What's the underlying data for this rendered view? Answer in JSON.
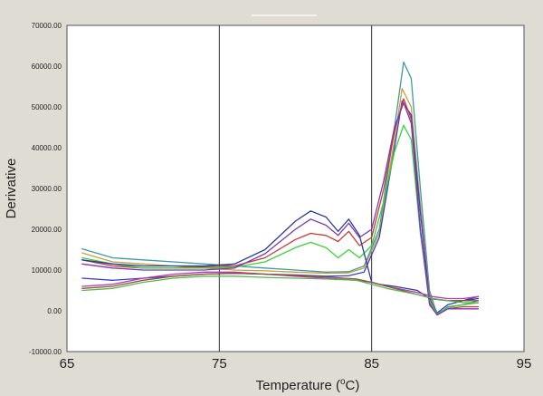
{
  "chart_data": {
    "type": "line",
    "title": "",
    "xlabel": {
      "prefix": "Temperature (",
      "sup": "o",
      "suffix": "C)"
    },
    "ylabel": "Derivative",
    "xlim": [
      65,
      95
    ],
    "ylim": [
      -10000,
      70000
    ],
    "xticks": [
      {
        "value": 65,
        "label": "65"
      },
      {
        "value": 75,
        "label": "75"
      },
      {
        "value": 85,
        "label": "85"
      },
      {
        "value": 95,
        "label": "95"
      }
    ],
    "yticks": [
      {
        "value": -10000,
        "label": "-10000.00"
      },
      {
        "value": 0,
        "label": "0.00"
      },
      {
        "value": 10000,
        "label": "10000.00"
      },
      {
        "value": 20000,
        "label": "20000.00"
      },
      {
        "value": 30000,
        "label": "30000.00"
      },
      {
        "value": 40000,
        "label": "40000.00"
      },
      {
        "value": 50000,
        "label": "50000.00"
      },
      {
        "value": 60000,
        "label": "60000.00"
      },
      {
        "value": 70000,
        "label": "70000.00"
      }
    ],
    "vertical_gridlines": [
      75,
      85
    ],
    "horizontal_grid": false,
    "legend": "none",
    "series": [
      {
        "color": "#3d9aa5",
        "x": [
          66,
          68,
          70,
          72,
          74,
          76,
          78,
          80,
          82,
          83.5,
          84.5,
          85.5,
          86.5,
          87.1,
          87.6,
          88.2,
          88.8,
          89.3,
          90,
          91,
          92
        ],
        "y": [
          15200,
          13000,
          12500,
          12000,
          11500,
          11000,
          10500,
          10000,
          9500,
          9600,
          11000,
          20000,
          45000,
          61000,
          57000,
          30000,
          5000,
          -1000,
          1000,
          1500,
          2500
        ]
      },
      {
        "color": "#c8a03c",
        "x": [
          66,
          68,
          70,
          72,
          74,
          76,
          78,
          80,
          82,
          83.5,
          84.5,
          85.5,
          86.5,
          87.0,
          87.6,
          88.2,
          88.8,
          89.3,
          90,
          91,
          92
        ],
        "y": [
          14200,
          12000,
          11500,
          11000,
          10500,
          10000,
          9800,
          9500,
          9200,
          9300,
          10500,
          19000,
          42000,
          54500,
          50000,
          26000,
          4000,
          -800,
          800,
          1500,
          2000
        ]
      },
      {
        "color": "#3a3fc8",
        "x": [
          66,
          68,
          70,
          72,
          74,
          76,
          78,
          80,
          82,
          83.5,
          84.5,
          85.5,
          86.5,
          87.0,
          87.6,
          88.2,
          88.8,
          89.3,
          90,
          91,
          92
        ],
        "y": [
          8000,
          7500,
          8000,
          8500,
          9000,
          9200,
          9000,
          8800,
          8500,
          8600,
          9500,
          18000,
          40000,
          51500,
          48000,
          24000,
          3000,
          -500,
          1500,
          2500,
          3500
        ]
      },
      {
        "color": "#c83a3a",
        "x": [
          66,
          68,
          70,
          72,
          74,
          76,
          78,
          80,
          81,
          82,
          82.8,
          83.5,
          84.2,
          85,
          85.8,
          86.5,
          87.1,
          87.6,
          88.2,
          88.8,
          89.3,
          90,
          91,
          92
        ],
        "y": [
          12500,
          11000,
          10500,
          10500,
          10800,
          11000,
          13000,
          17500,
          19000,
          18500,
          17000,
          19500,
          16000,
          18000,
          30000,
          44000,
          52000,
          47000,
          20000,
          2000,
          -1000,
          500,
          1000,
          1000
        ]
      },
      {
        "color": "#3ad23a",
        "x": [
          66,
          68,
          70,
          72,
          74,
          76,
          78,
          80,
          81,
          82,
          82.8,
          83.5,
          84.2,
          85,
          85.8,
          86.5,
          87.1,
          87.6,
          88.2,
          88.8,
          89.3,
          90,
          91,
          92
        ],
        "y": [
          13000,
          11500,
          10500,
          10500,
          10500,
          10700,
          12000,
          15500,
          16800,
          15500,
          13000,
          15000,
          13000,
          16000,
          27000,
          39000,
          45500,
          42000,
          19000,
          2500,
          -800,
          800,
          1500,
          2000
        ]
      },
      {
        "color": "#7a3ab4",
        "x": [
          66,
          68,
          70,
          72,
          74,
          76,
          78,
          80,
          81,
          82,
          82.8,
          83.5,
          84.2,
          85,
          85.8,
          86.5,
          87.1,
          87.6,
          88.2,
          88.8,
          89.3,
          90,
          91,
          92
        ],
        "y": [
          11500,
          10500,
          10000,
          10000,
          10000,
          10500,
          14000,
          20000,
          22500,
          21000,
          18500,
          21500,
          18000,
          20000,
          32000,
          45000,
          51000,
          46000,
          20000,
          1500,
          -1000,
          500,
          500,
          500
        ]
      },
      {
        "color": "#2a3a9c",
        "x": [
          66,
          68,
          70,
          72,
          74,
          76,
          78,
          80,
          81,
          82,
          82.8,
          83.5,
          84.2,
          85,
          85.5,
          86.5,
          88,
          88.8,
          90,
          91,
          92
        ],
        "y": [
          12500,
          11500,
          11000,
          11000,
          11000,
          11500,
          15000,
          22000,
          24500,
          23000,
          19500,
          22500,
          18500,
          7000,
          6500,
          6000,
          5000,
          3000,
          2500,
          2500,
          3000
        ]
      },
      {
        "color": "#b43ab4",
        "x": [
          66,
          68,
          70,
          72,
          74,
          76,
          78,
          80,
          82,
          84,
          85,
          86,
          88,
          89,
          90,
          91,
          92
        ],
        "y": [
          6000,
          6500,
          8000,
          9000,
          9500,
          9500,
          9000,
          8500,
          8000,
          7500,
          7000,
          6000,
          4500,
          3500,
          3000,
          3000,
          3500
        ]
      },
      {
        "color": "#8a5a2a",
        "x": [
          66,
          68,
          70,
          72,
          74,
          76,
          78,
          80,
          82,
          84,
          85,
          86,
          88,
          89,
          90,
          91,
          92
        ],
        "y": [
          5500,
          6000,
          7500,
          8500,
          9000,
          9200,
          9000,
          8700,
          8300,
          7800,
          7000,
          6000,
          4000,
          3000,
          2500,
          2500,
          2500
        ]
      },
      {
        "color": "#5ab45a",
        "x": [
          66,
          68,
          70,
          72,
          74,
          76,
          78,
          80,
          82,
          84,
          85,
          86,
          88,
          89,
          90,
          91,
          92
        ],
        "y": [
          5000,
          5500,
          7000,
          8000,
          8500,
          8500,
          8200,
          8000,
          7800,
          7500,
          6500,
          5500,
          4000,
          3000,
          2500,
          2000,
          2000
        ]
      }
    ]
  }
}
